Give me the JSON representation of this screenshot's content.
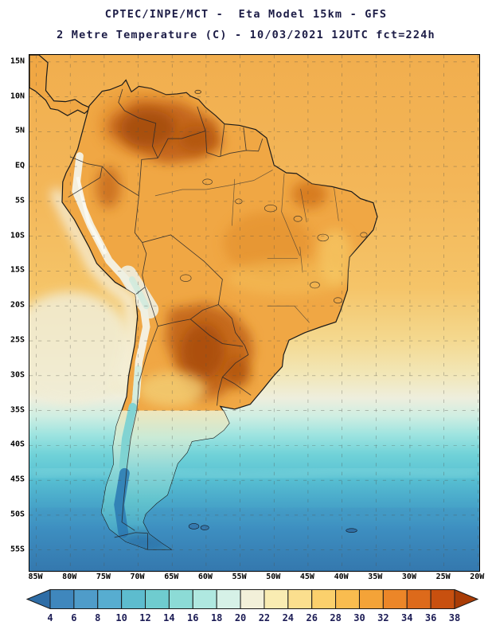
{
  "header": {
    "line1": "CPTEC/INPE/MCT -  Eta Model 15km - GFS",
    "line2": "2 Metre Temperature (C) - 10/03/2021 12UTC fct=224h"
  },
  "map": {
    "lat_labels": [
      "15N",
      "10N",
      "5N",
      "EQ",
      "5S",
      "10S",
      "15S",
      "20S",
      "25S",
      "30S",
      "35S",
      "40S",
      "45S",
      "50S",
      "55S"
    ],
    "lon_labels": [
      "85W",
      "80W",
      "75W",
      "70W",
      "65W",
      "60W",
      "55W",
      "50W",
      "45W",
      "40W",
      "35W",
      "30W",
      "25W",
      "20W"
    ]
  },
  "colorbar": {
    "tick_labels": [
      "4",
      "6",
      "8",
      "10",
      "12",
      "14",
      "16",
      "18",
      "20",
      "22",
      "24",
      "26",
      "28",
      "30",
      "32",
      "34",
      "36",
      "38"
    ],
    "colors": [
      "#2e6da6",
      "#3f87bd",
      "#4f9cc9",
      "#57add0",
      "#5dbcce",
      "#6fcccf",
      "#8cdbd6",
      "#afe8e0",
      "#d6f1e7",
      "#f2f0d9",
      "#f9ecb2",
      "#fbdf8e",
      "#fbd06c",
      "#f9bc4f",
      "#f4a338",
      "#ec8628",
      "#dd6a1b",
      "#c8500f",
      "#a93c06"
    ]
  }
}
